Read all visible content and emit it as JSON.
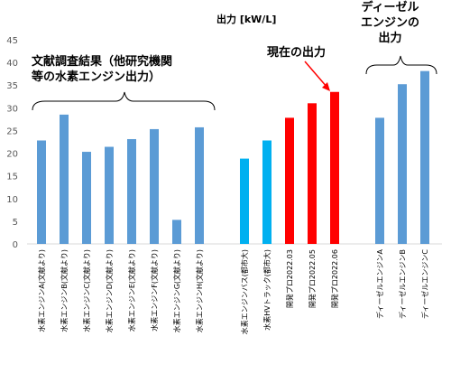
{
  "chart_data": {
    "type": "bar",
    "ylabel": "出力 [kW/L]",
    "ylim": [
      0,
      45
    ],
    "yticks": [
      0,
      5,
      10,
      15,
      20,
      25,
      30,
      35,
      40,
      45
    ],
    "grid": false,
    "categories": [
      "水素エンジンA(文献より)",
      "水素エンジンB(文献より)",
      "水素エンジンC(文献より)",
      "水素エンジンD(文献より)",
      "水素エンジンE(文献より)",
      "水素エンジンF(文献より)",
      "水素エンジンG(文献より)",
      "水素エンジンH(文献より)",
      "水素エンジンバス(都市大)",
      "水素HVトラック(都市大)",
      "開発プロ2022.03",
      "開発プロ2022.05",
      "開発プロ2022.06",
      "ディーゼルエンジンA",
      "ディーゼルエンジンB",
      "ディーゼルエンジンC"
    ],
    "values": [
      22.8,
      28.5,
      20.3,
      21.4,
      23.1,
      25.3,
      5.3,
      25.7,
      18.8,
      22.8,
      27.8,
      31.0,
      33.5,
      27.8,
      35.2,
      38.1
    ],
    "bar_colors": [
      "#5b9bd5",
      "#5b9bd5",
      "#5b9bd5",
      "#5b9bd5",
      "#5b9bd5",
      "#5b9bd5",
      "#5b9bd5",
      "#5b9bd5",
      "#00b0f0",
      "#00b0f0",
      "#ff0000",
      "#ff0000",
      "#ff0000",
      "#5b9bd5",
      "#5b9bd5",
      "#5b9bd5"
    ],
    "annotations": {
      "literature": "文献調査結果（他研究機関\n等の水素エンジン出力）",
      "current": "現在の出力",
      "diesel": "ディーゼル\nエンジンの\n出力"
    }
  }
}
